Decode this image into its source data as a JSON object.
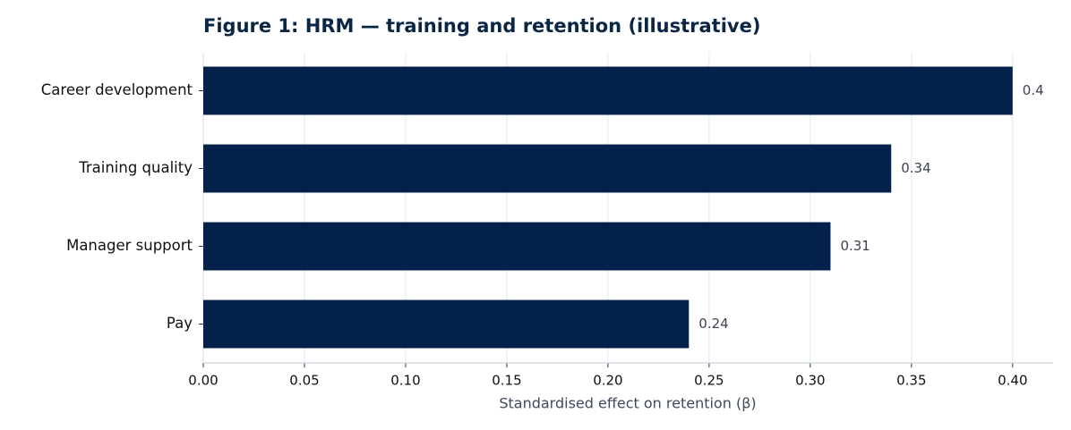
{
  "chart_data": {
    "type": "barh",
    "title": "Figure 1: HRM — training and retention (illustrative)",
    "xlabel": "Standardised effect on retention (β)",
    "categories": [
      "Career development",
      "Training quality",
      "Manager support",
      "Pay"
    ],
    "values": [
      0.4,
      0.34,
      0.31,
      0.24
    ],
    "color": "#03214a",
    "xlim": [
      0,
      0.42
    ],
    "xticks": [
      {
        "value": 0,
        "label": "0.00"
      },
      0.05,
      {
        "value": 0.1,
        "label": "0.10"
      },
      0.15,
      {
        "value": 0.2,
        "label": "0.20"
      },
      0.25,
      {
        "value": 0.3,
        "label": "0.30"
      },
      0.35,
      {
        "value": 0.4,
        "label": "0.40"
      }
    ],
    "grid": true
  }
}
